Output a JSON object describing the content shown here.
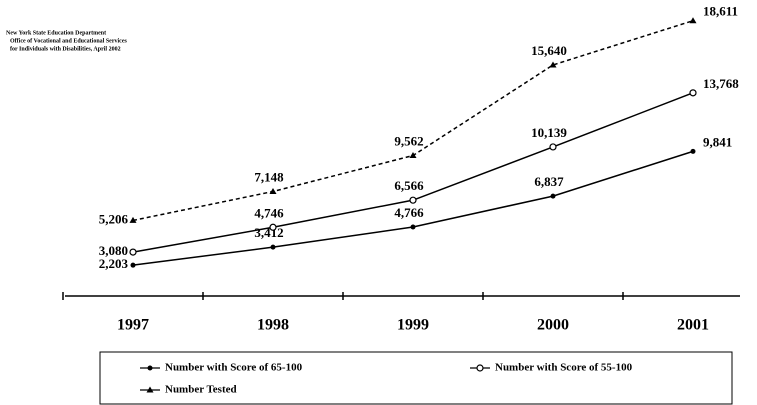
{
  "chart_data": {
    "type": "line",
    "source": [
      "New York State Education Department",
      "Office of Vocational and Educational Services",
      "for Individuals with Disabilities, April 2002"
    ],
    "categories": [
      "1997",
      "1998",
      "1999",
      "2000",
      "2001"
    ],
    "ylim": [
      0,
      20000
    ],
    "series": [
      {
        "name": "Number with Score of 65-100",
        "color": "#000000",
        "marker": "dot",
        "dashed": false,
        "values": [
          2203,
          3412,
          4766,
          6837,
          9841
        ],
        "value_labels": [
          "2,203",
          "3,412",
          "4,766",
          "6,837",
          "9,841"
        ]
      },
      {
        "name": "Number with Score of 55-100",
        "color": "#000000",
        "marker": "circle",
        "dashed": false,
        "values": [
          3080,
          4746,
          6566,
          10139,
          13768
        ],
        "value_labels": [
          "3,080",
          "4,746",
          "6,566",
          "10,139",
          "13,768"
        ]
      },
      {
        "name": "Number Tested",
        "color": "#000000",
        "marker": "triangle",
        "dashed": true,
        "values": [
          5206,
          7148,
          9562,
          15640,
          18611
        ],
        "value_labels": [
          "5,206",
          "7,148",
          "9,562",
          "15,640",
          "18,611"
        ]
      }
    ]
  }
}
